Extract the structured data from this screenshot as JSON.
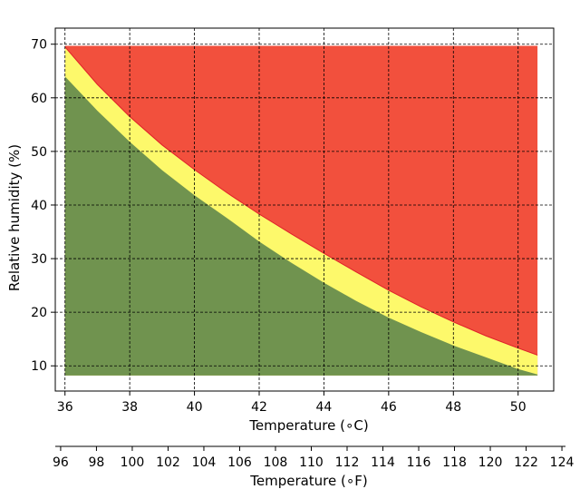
{
  "chart_data": {
    "type": "area",
    "xlabel": "Temperature (∘C)",
    "ylabel": "Relative humidity (%)",
    "xlabel_secondary": "Temperature (∘F)",
    "xlim": [
      35.7,
      51.1
    ],
    "ylim": [
      5.3,
      73
    ],
    "xlim_secondary": [
      95.7,
      124.2
    ],
    "x_ticks": [
      36,
      38,
      40,
      42,
      44,
      46,
      48,
      50
    ],
    "y_ticks": [
      10,
      20,
      30,
      40,
      50,
      60,
      70
    ],
    "x_ticks_secondary": [
      96,
      98,
      100,
      102,
      104,
      106,
      108,
      110,
      112,
      114,
      116,
      118,
      120,
      122,
      124
    ],
    "grid": true,
    "x": [
      36,
      37,
      38,
      39,
      40,
      41,
      42,
      43,
      44,
      45,
      46,
      47,
      48,
      49,
      50,
      50.6
    ],
    "rh_floor": 8.2,
    "rh_top": 69.7,
    "series": [
      {
        "color": "#70934F",
        "values": [
          64,
          57.6,
          51.8,
          46.5,
          41.8,
          37.6,
          33.2,
          29.2,
          25.5,
          22.1,
          19,
          16.3,
          13.8,
          11.6,
          9.4,
          8.4
        ]
      },
      {
        "color": "#FDF96B",
        "values": [
          69.5,
          62.5,
          56.5,
          51.2,
          46.6,
          42.3,
          38.3,
          34.6,
          31,
          27.5,
          24.1,
          21,
          18.2,
          15.6,
          13.3,
          12
        ]
      },
      {
        "color": "#F2503D",
        "values": [
          69.7,
          69.7,
          69.7,
          69.7,
          69.7,
          69.7,
          69.7,
          69.7,
          69.7,
          69.7,
          69.7,
          69.7,
          69.7,
          69.7,
          69.7,
          69.7
        ]
      }
    ]
  }
}
